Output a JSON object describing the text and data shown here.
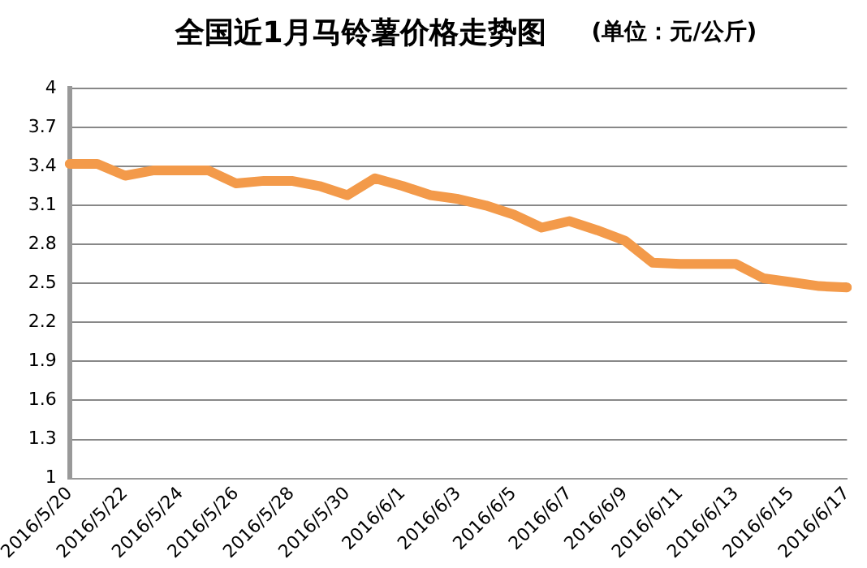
{
  "chart_data": {
    "type": "line",
    "title": "全国近1月马铃薯价格走势图",
    "subtitle": "(单位：元/公斤)",
    "categories": [
      "2016/5/20",
      null,
      "2016/5/22",
      null,
      "2016/5/24",
      null,
      "2016/5/26",
      null,
      "2016/5/28",
      null,
      "2016/5/30",
      null,
      "2016/6/1",
      null,
      "2016/6/3",
      null,
      "2016/6/5",
      null,
      "2016/6/7",
      null,
      "2016/6/9",
      null,
      "2016/6/11",
      null,
      "2016/6/13",
      null,
      "2016/6/15",
      null,
      "2016/6/17"
    ],
    "series": [
      {
        "color": "#f39a4a",
        "values": [
          3.42,
          3.42,
          3.33,
          3.37,
          3.37,
          3.37,
          3.27,
          3.29,
          3.29,
          3.25,
          3.18,
          3.31,
          3.25,
          3.18,
          3.15,
          3.1,
          3.03,
          2.93,
          2.98,
          2.91,
          2.83,
          2.66,
          2.65,
          2.65,
          2.65,
          2.54,
          2.51,
          2.48,
          2.47
        ]
      }
    ],
    "ylim": [
      1,
      4
    ],
    "yticks": [
      1,
      1.3,
      1.6,
      1.9,
      2.2,
      2.5,
      2.8,
      3.1,
      3.4,
      3.7,
      4
    ],
    "grid": "y",
    "legend": false,
    "marker": "none",
    "line_style": "solid"
  }
}
